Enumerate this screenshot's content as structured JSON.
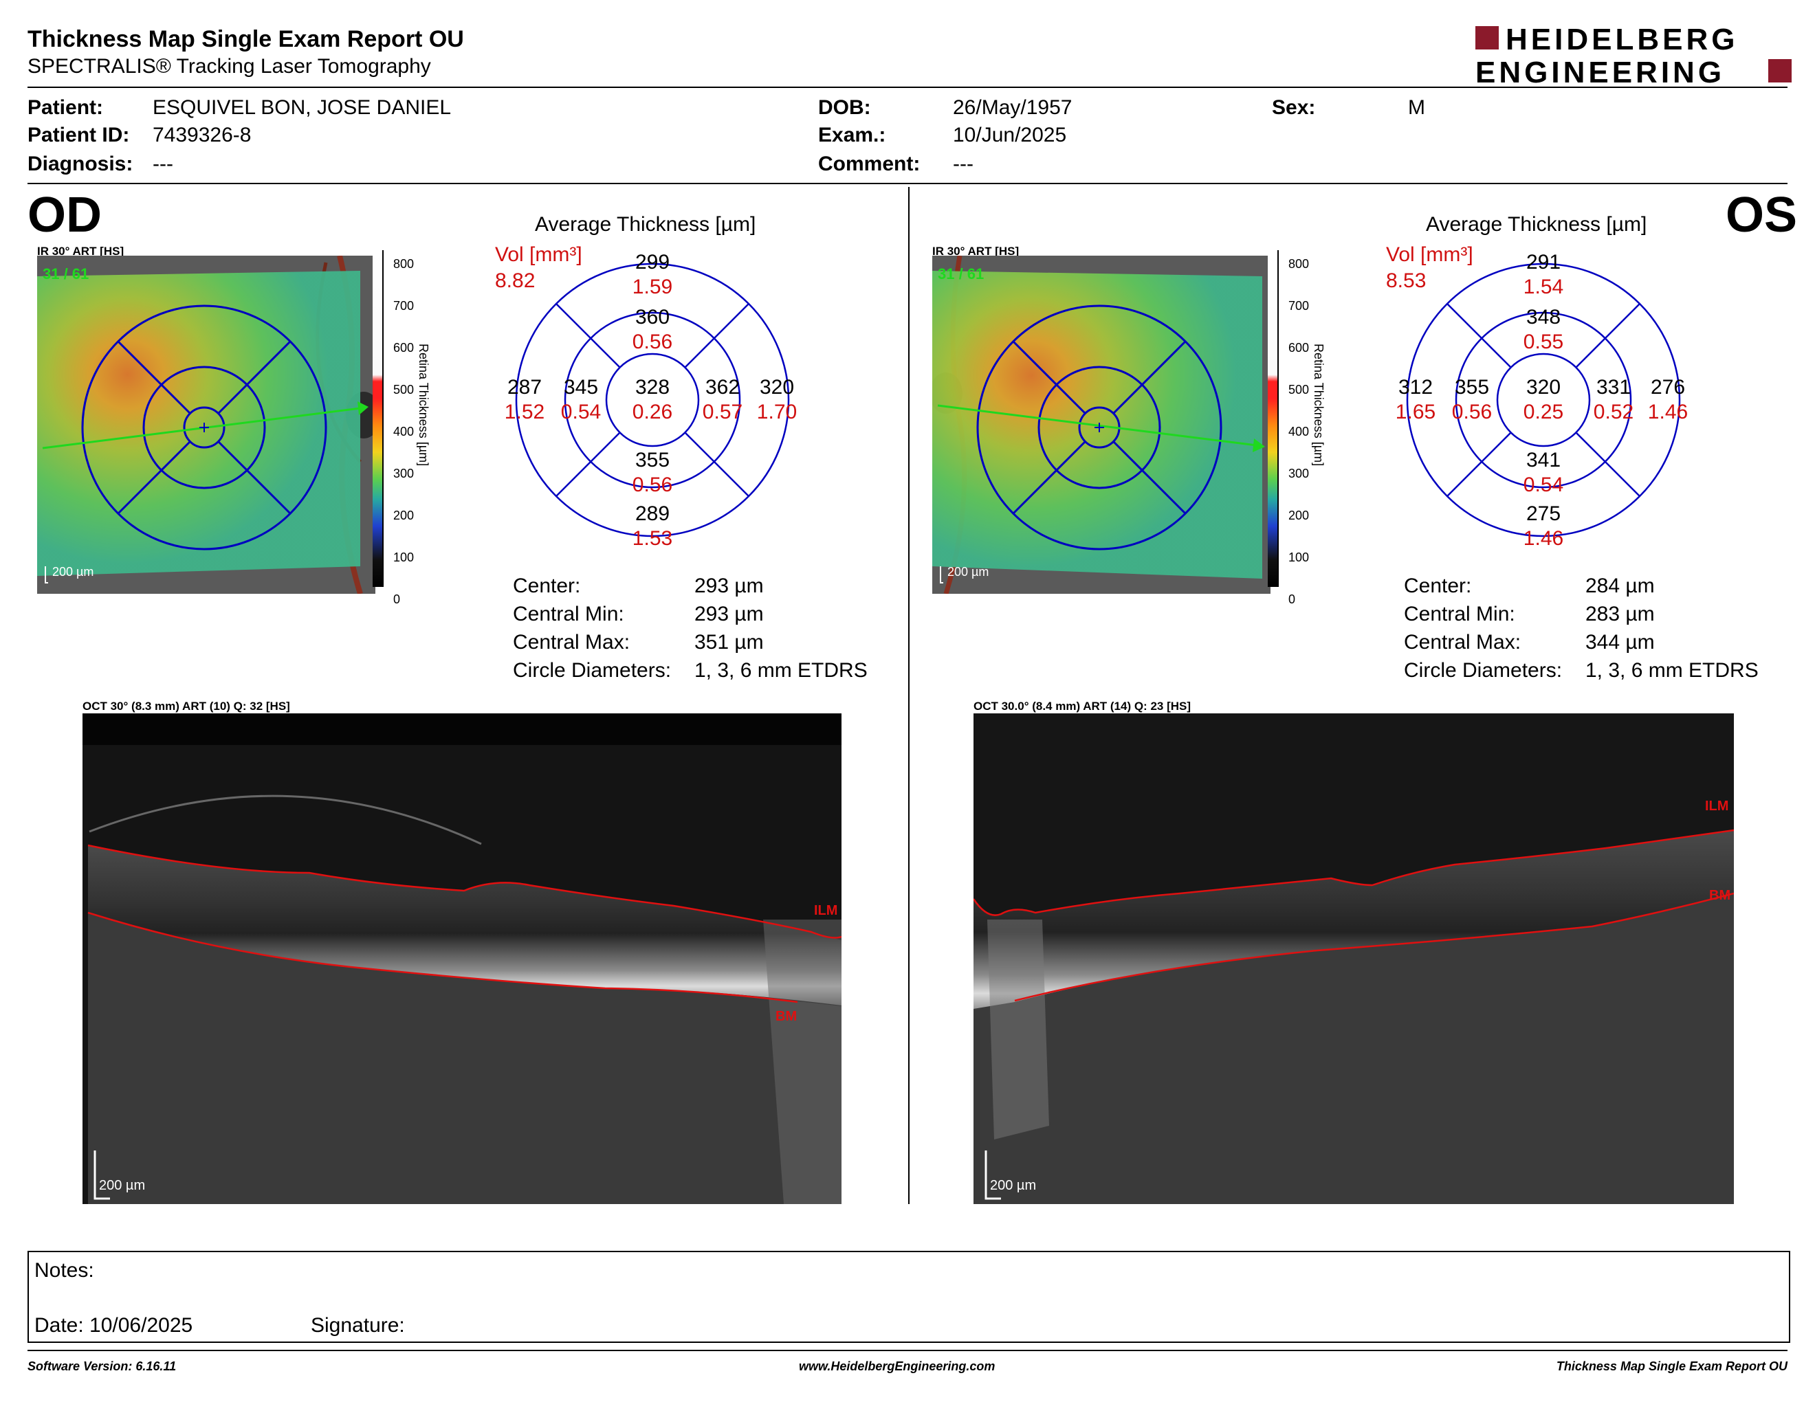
{
  "header": {
    "title": "Thickness Map Single Exam Report OU",
    "subtitle": "SPECTRALIS® Tracking Laser Tomography",
    "logo_line1": "HEIDELBERG",
    "logo_line2": "ENGINEERING"
  },
  "patient": {
    "patient_label": "Patient:",
    "patient_value": "ESQUIVEL BON, JOSE DANIEL",
    "id_label": "Patient ID:",
    "id_value": "7439326-8",
    "diagnosis_label": "Diagnosis:",
    "diagnosis_value": "---",
    "dob_label": "DOB:",
    "dob_value": "26/May/1957",
    "exam_label": "Exam.:",
    "exam_value": "10/Jun/2025",
    "comment_label": "Comment:",
    "comment_value": "---",
    "sex_label": "Sex:",
    "sex_value": "M"
  },
  "colorbar": {
    "ticks": [
      "800",
      "700",
      "600",
      "500",
      "400",
      "300",
      "200",
      "100",
      "0"
    ],
    "label": "Retina Thickness [µm]"
  },
  "od": {
    "eye": "OD",
    "fundus_caption": "IR 30° ART [HS]",
    "fundus_counter": "31 / 61",
    "scale": "200 µm",
    "avg_title": "Average Thickness [µm]",
    "vol_label": "Vol [mm³]",
    "vol_value": "8.82",
    "sectors": {
      "outer_top": {
        "t": "299",
        "v": "1.59"
      },
      "inner_top": {
        "t": "360",
        "v": "0.56"
      },
      "center": {
        "t": "328",
        "v": "0.26"
      },
      "outer_left": {
        "t": "287",
        "v": "1.52"
      },
      "inner_left": {
        "t": "345",
        "v": "0.54"
      },
      "inner_right": {
        "t": "362",
        "v": "0.57"
      },
      "outer_right": {
        "t": "320",
        "v": "1.70"
      },
      "inner_bottom": {
        "t": "355",
        "v": "0.56"
      },
      "outer_bottom": {
        "t": "289",
        "v": "1.53"
      }
    },
    "stats": [
      {
        "label": "Center:",
        "value": "293 µm"
      },
      {
        "label": "Central Min:",
        "value": "293 µm"
      },
      {
        "label": "Central Max:",
        "value": "351 µm"
      },
      {
        "label": "Circle Diameters:",
        "value": "1, 3, 6 mm ETDRS"
      }
    ],
    "oct_caption": "OCT 30° (8.3 mm) ART (10) Q: 32 [HS]",
    "ilm": "ILM",
    "bm": "BM",
    "oct_scale": "200 µm"
  },
  "os": {
    "eye": "OS",
    "fundus_caption": "IR 30° ART [HS]",
    "fundus_counter": "31 / 61",
    "scale": "200 µm",
    "avg_title": "Average Thickness [µm]",
    "vol_label": "Vol [mm³]",
    "vol_value": "8.53",
    "sectors": {
      "outer_top": {
        "t": "291",
        "v": "1.54"
      },
      "inner_top": {
        "t": "348",
        "v": "0.55"
      },
      "center": {
        "t": "320",
        "v": "0.25"
      },
      "outer_left": {
        "t": "312",
        "v": "1.65"
      },
      "inner_left": {
        "t": "355",
        "v": "0.56"
      },
      "inner_right": {
        "t": "331",
        "v": "0.52"
      },
      "outer_right": {
        "t": "276",
        "v": "1.46"
      },
      "inner_bottom": {
        "t": "341",
        "v": "0.54"
      },
      "outer_bottom": {
        "t": "275",
        "v": "1.46"
      }
    },
    "stats": [
      {
        "label": "Center:",
        "value": "284 µm"
      },
      {
        "label": "Central Min:",
        "value": "283 µm"
      },
      {
        "label": "Central Max:",
        "value": "344 µm"
      },
      {
        "label": "Circle Diameters:",
        "value": "1, 3, 6 mm ETDRS"
      }
    ],
    "oct_caption": "OCT 30.0° (8.4 mm) ART (14) Q: 23 [HS]",
    "ilm": "ILM",
    "bm": "BM",
    "oct_scale": "200 µm"
  },
  "notes": {
    "notes_label": "Notes:",
    "date_label": "Date: 10/06/2025",
    "signature_label": "Signature:"
  },
  "footer": {
    "software": "Software Version: 6.16.11",
    "website": "www.HeidelbergEngineering.com",
    "report": "Thickness Map Single Exam Report OU"
  },
  "colors": {
    "grid_blue": "#0000c0",
    "volume_red": "#d01010",
    "logo_red": "#8b1a2b",
    "oct_line_red": "#e01010"
  }
}
